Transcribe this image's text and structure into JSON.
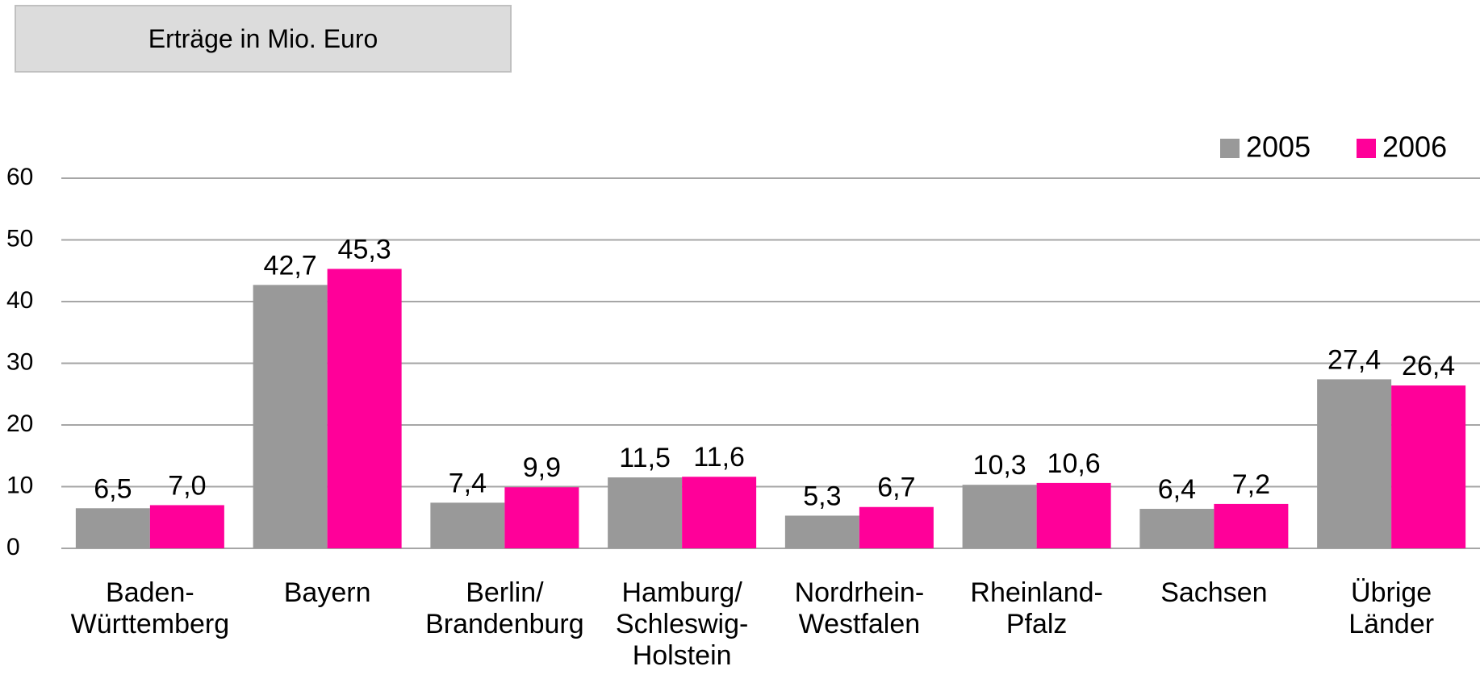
{
  "chart_data": {
    "type": "bar",
    "title": "Erträge in Mio. Euro",
    "categories": [
      "Baden-\nWürttemberg",
      "Bayern",
      "Berlin/\nBrandenburg",
      "Hamburg/\nSchleswig-\nHolstein",
      "Nordrhein-\nWestfalen",
      "Rheinland-\nPfalz",
      "Sachsen",
      "Übrige\nLänder"
    ],
    "series": [
      {
        "name": "2005",
        "color": "#999999",
        "values": [
          6.5,
          42.7,
          7.4,
          11.5,
          5.3,
          10.3,
          6.4,
          27.4
        ],
        "value_labels": [
          "6,5",
          "42,7",
          "7,4",
          "11,5",
          "5,3",
          "10,3",
          "6,4",
          "27,4"
        ]
      },
      {
        "name": "2006",
        "color": "#ff0099",
        "values": [
          7.0,
          45.3,
          9.9,
          11.6,
          6.7,
          10.6,
          7.2,
          26.4
        ],
        "value_labels": [
          "7,0",
          "45,3",
          "9,9",
          "11,6",
          "6,7",
          "10,6",
          "7,2",
          "26,4"
        ]
      }
    ],
    "ylim": [
      0,
      60
    ],
    "yticks": [
      0,
      10,
      20,
      30,
      40,
      50,
      60
    ],
    "grid": true,
    "legend": "top-right"
  }
}
